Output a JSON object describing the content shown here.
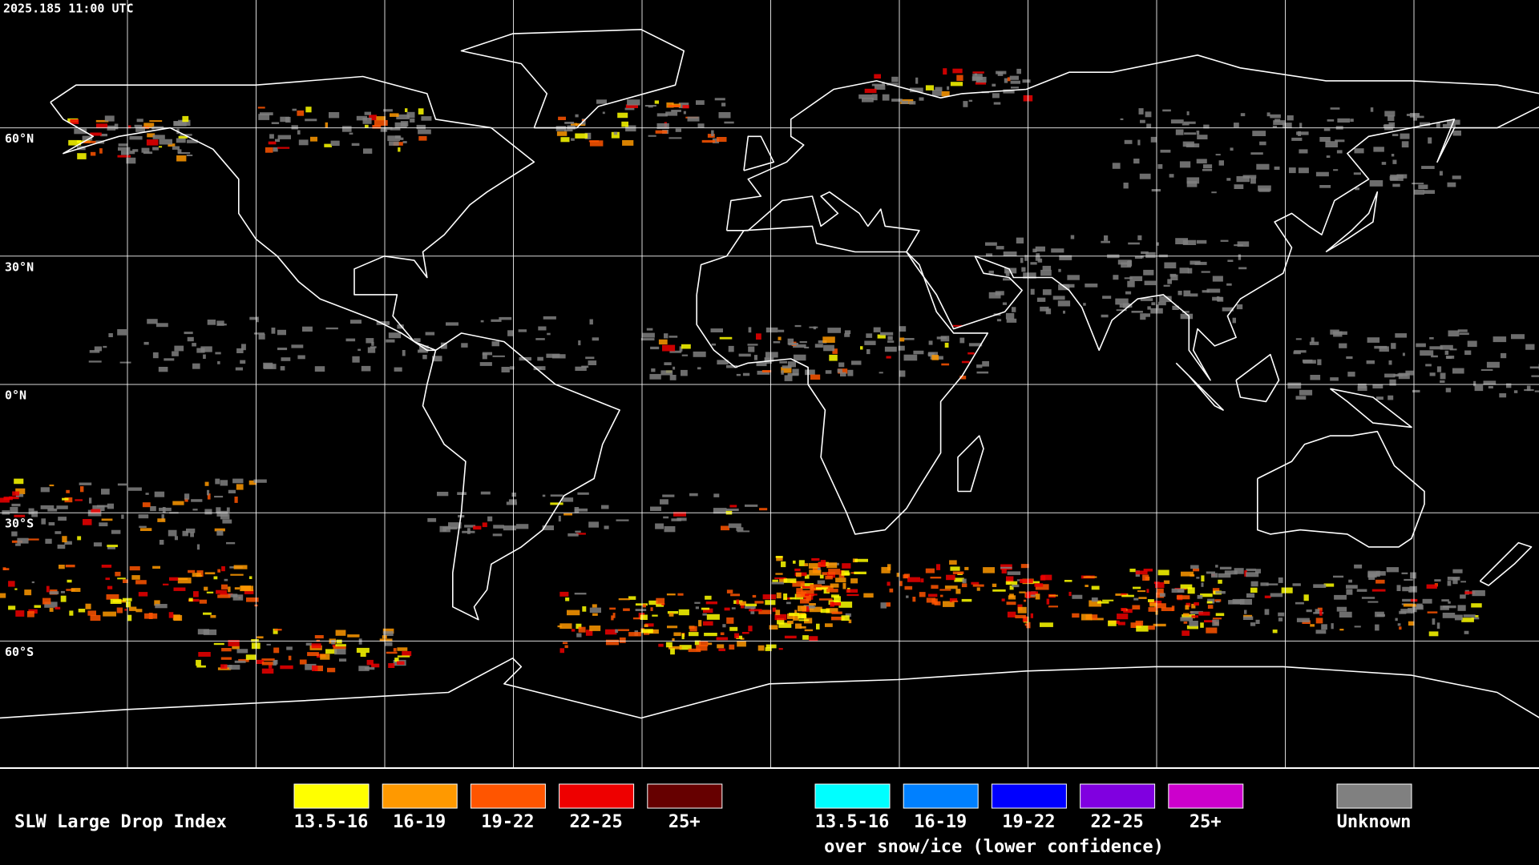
{
  "header": {
    "timestamp": "2025.185 11:00 UTC"
  },
  "map": {
    "latitude_labels": [
      "60°N",
      "30°N",
      "0°N",
      "30°S",
      "60°S"
    ]
  },
  "legend": {
    "title": "SLW Large Drop Index",
    "classes": [
      {
        "label": "13.5-16",
        "color": "#ffff00"
      },
      {
        "label": "16-19",
        "color": "#ff9900"
      },
      {
        "label": "19-22",
        "color": "#ff5500"
      },
      {
        "label": "22-25",
        "color": "#ee0000"
      },
      {
        "label": "25+",
        "color": "#660000"
      }
    ],
    "snow_ice_classes": [
      {
        "label": "13.5-16",
        "color": "#00ffff"
      },
      {
        "label": "16-19",
        "color": "#0080ff"
      },
      {
        "label": "19-22",
        "color": "#0000ff"
      },
      {
        "label": "22-25",
        "color": "#8000e0"
      },
      {
        "label": "25+",
        "color": "#cc00cc"
      }
    ],
    "snow_ice_note": "over snow/ice (lower confidence)",
    "unknown": {
      "label": "Unknown",
      "color": "#808080"
    }
  }
}
